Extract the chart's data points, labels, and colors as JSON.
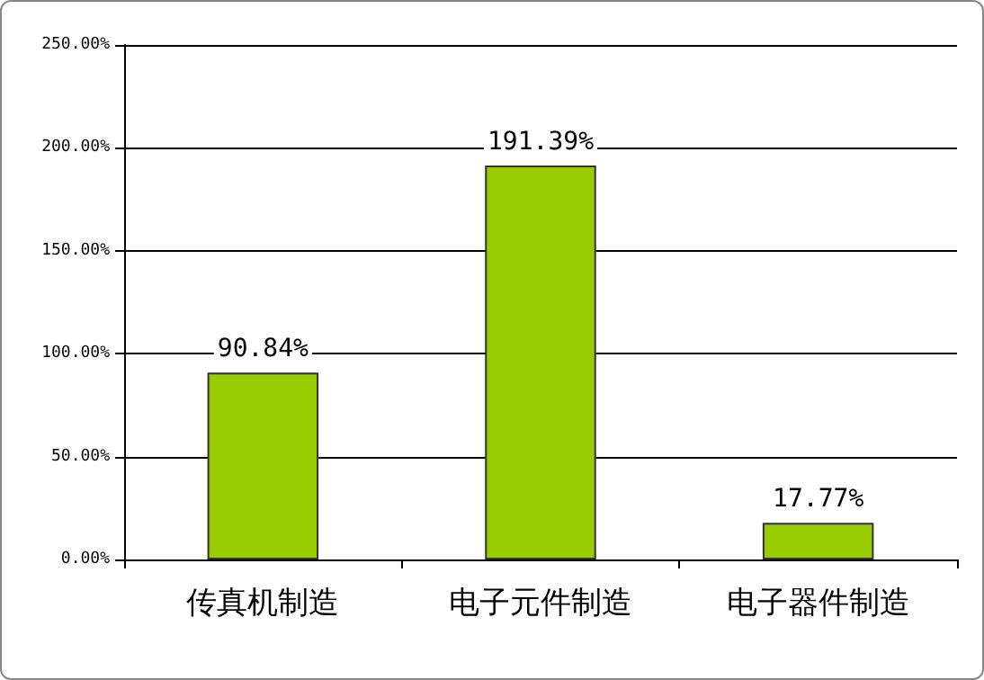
{
  "chart_data": {
    "type": "bar",
    "categories": [
      "传真机制造",
      "电子元件制造",
      "电子器件制造"
    ],
    "values": [
      90.84,
      191.39,
      17.77
    ],
    "value_labels": [
      "90.84%",
      "191.39%",
      "17.77%"
    ],
    "color": "#99cc00",
    "ylim": [
      0,
      250
    ],
    "yticks": [
      {
        "value": 0,
        "label": "0.00%"
      },
      {
        "value": 50,
        "label": "50.00%"
      },
      {
        "value": 100,
        "label": "100.00%"
      },
      {
        "value": 150,
        "label": "150.00%"
      },
      {
        "value": 200,
        "label": "200.00%"
      },
      {
        "value": 250,
        "label": "250.00%"
      }
    ],
    "grid": "y"
  }
}
